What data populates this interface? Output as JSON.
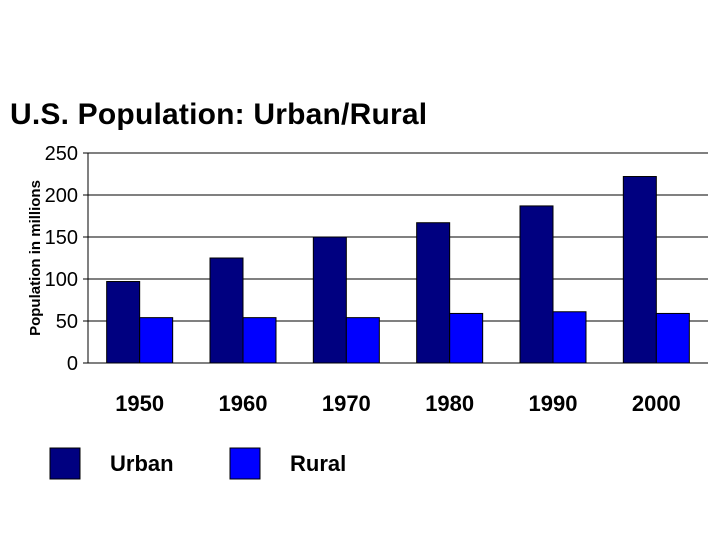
{
  "chart_data": {
    "type": "bar",
    "title": "U.S. Population: Urban/Rural",
    "xlabel": "",
    "ylabel": "Population in millions",
    "categories": [
      "1950",
      "1960",
      "1970",
      "1980",
      "1990",
      "2000"
    ],
    "series": [
      {
        "name": "Urban",
        "color": "#000080",
        "values": [
          97,
          125,
          150,
          167,
          187,
          222
        ]
      },
      {
        "name": "Rural",
        "color": "#0000FF",
        "values": [
          54,
          54,
          54,
          59,
          61,
          59
        ]
      }
    ],
    "ylim": [
      0,
      250
    ],
    "yticks": [
      "0",
      "50",
      "100",
      "150",
      "200",
      "250"
    ],
    "grid": true,
    "legend_position": "bottom"
  }
}
